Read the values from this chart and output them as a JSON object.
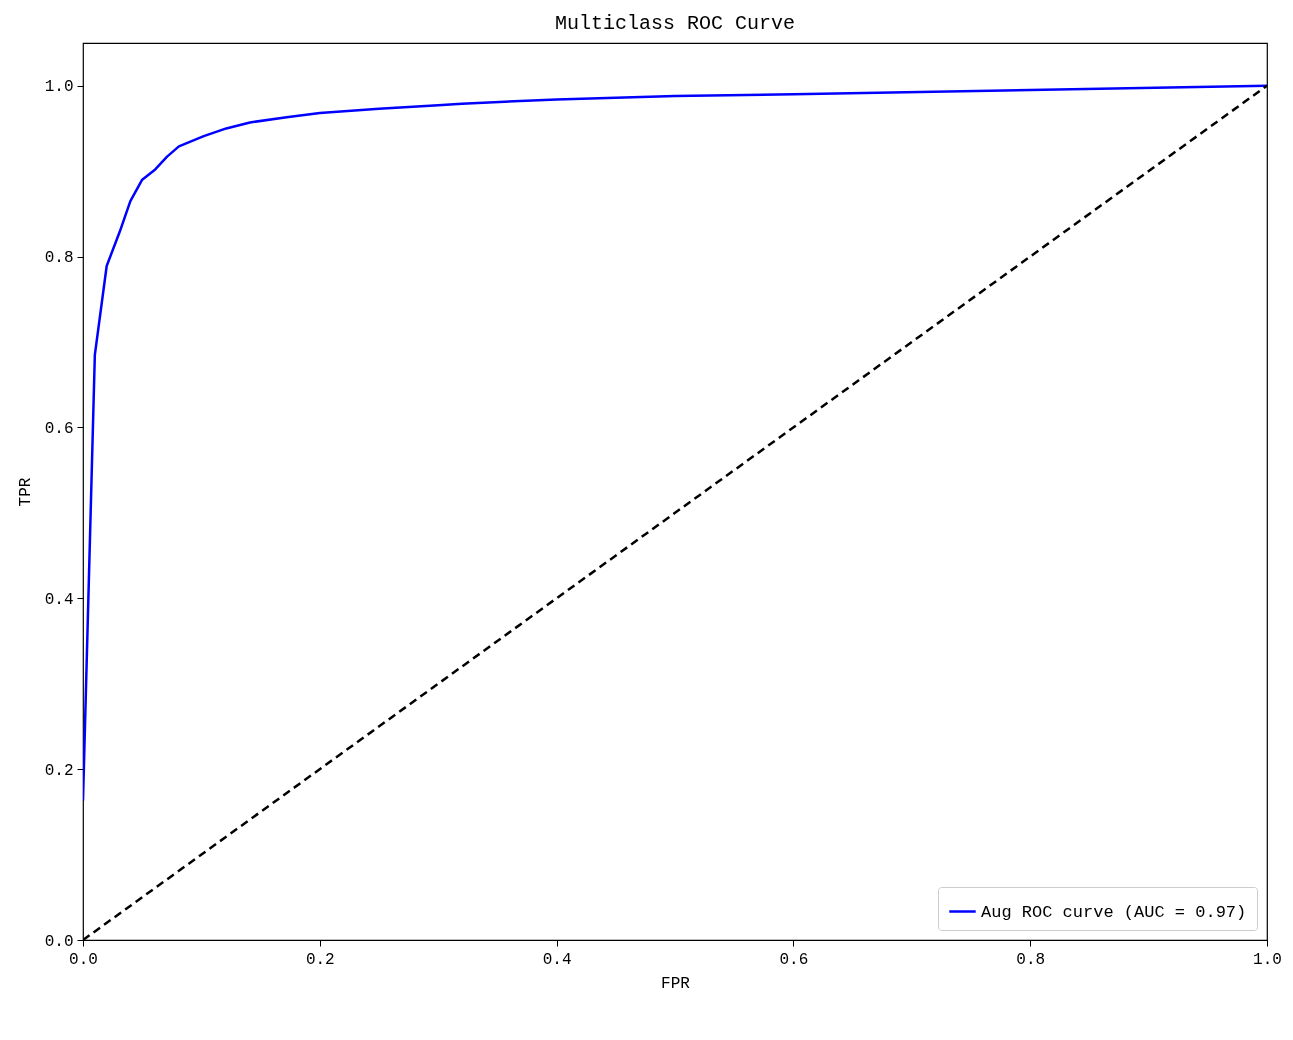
{
  "chart_data": {
    "type": "line",
    "title": "Multiclass ROC Curve",
    "xlabel": "FPR",
    "ylabel": "TPR",
    "xlim": [
      0,
      1
    ],
    "ylim": [
      0,
      1.05
    ],
    "xticks": [
      {
        "value": 0,
        "label": "0.0"
      },
      {
        "value": 0.2,
        "label": "0.2"
      },
      {
        "value": 0.4,
        "label": "0.4"
      },
      {
        "value": 0.6,
        "label": "0.6"
      },
      {
        "value": 0.8,
        "label": "0.8"
      },
      {
        "value": 1,
        "label": "1.0"
      }
    ],
    "yticks": [
      {
        "value": 0,
        "label": "0.0"
      },
      {
        "value": 0.2,
        "label": "0.2"
      },
      {
        "value": 0.4,
        "label": "0.4"
      },
      {
        "value": 0.6,
        "label": "0.6"
      },
      {
        "value": 0.8,
        "label": "0.8"
      },
      {
        "value": 1,
        "label": "1.0"
      }
    ],
    "grid": false,
    "legend": "bottom right",
    "series": [
      {
        "name": "Aug ROC curve (AUC = 0.97)",
        "color": "#0000ff",
        "line_style": "solid",
        "x": [
          0,
          0.01,
          0.02,
          0.031,
          0.04,
          0.05,
          0.061,
          0.071,
          0.081,
          0.102,
          0.121,
          0.141,
          0.172,
          0.2,
          0.25,
          0.3,
          0.32,
          0.4,
          0.5,
          0.6,
          0.8,
          1
        ],
        "values": [
          0.163,
          0.685,
          0.789,
          0.829,
          0.865,
          0.89,
          0.902,
          0.917,
          0.929,
          0.941,
          0.95,
          0.957,
          0.963,
          0.968,
          0.973,
          0.977,
          0.979,
          0.984,
          0.988,
          0.99,
          0.995,
          1
        ]
      },
      {
        "color": "#000000",
        "line_style": "dashed",
        "x": [
          0,
          1
        ],
        "values": [
          0,
          1
        ]
      }
    ]
  }
}
